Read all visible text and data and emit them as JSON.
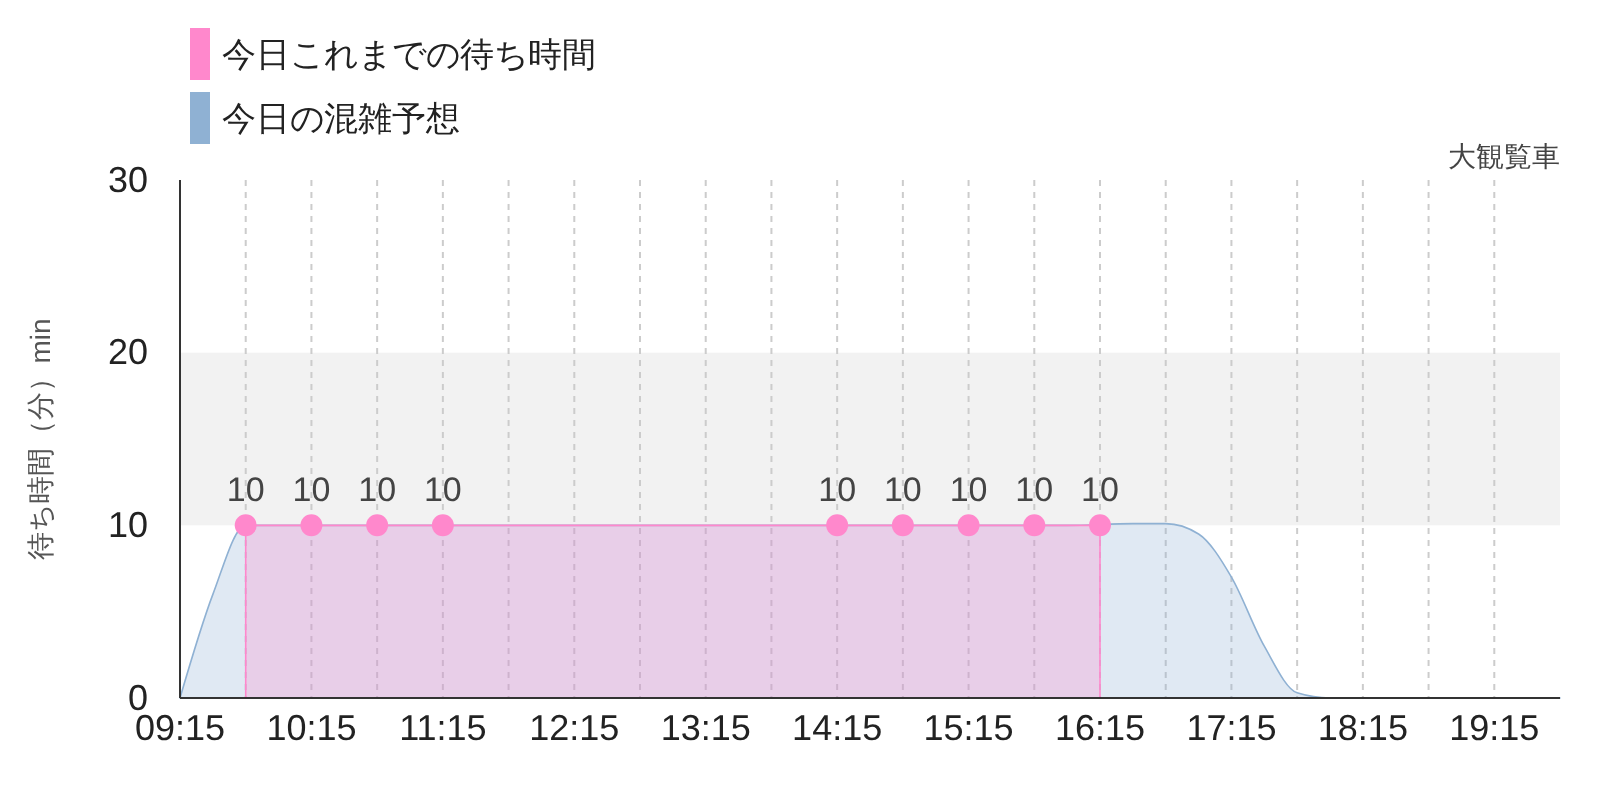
{
  "chart_data": {
    "type": "area",
    "subtitle": "大観覧車",
    "ylabel": "待ち時間（分）min",
    "xlim": [
      9.25,
      19.75
    ],
    "ylim": [
      0,
      30
    ],
    "yticks": [
      0,
      10,
      20,
      30
    ],
    "xticks": [
      {
        "value": 9.25,
        "label": "09:15"
      },
      {
        "value": 9.75,
        "label": null
      },
      {
        "value": 10.25,
        "label": "10:15"
      },
      {
        "value": 10.75,
        "label": null
      },
      {
        "value": 11.25,
        "label": "11:15"
      },
      {
        "value": 11.75,
        "label": null
      },
      {
        "value": 12.25,
        "label": "12:15"
      },
      {
        "value": 12.75,
        "label": null
      },
      {
        "value": 13.25,
        "label": "13:15"
      },
      {
        "value": 13.75,
        "label": null
      },
      {
        "value": 14.25,
        "label": "14:15"
      },
      {
        "value": 14.75,
        "label": null
      },
      {
        "value": 15.25,
        "label": "15:15"
      },
      {
        "value": 15.75,
        "label": null
      },
      {
        "value": 16.25,
        "label": "16:15"
      },
      {
        "value": 16.75,
        "label": null
      },
      {
        "value": 17.25,
        "label": "17:15"
      },
      {
        "value": 17.75,
        "label": null
      },
      {
        "value": 18.25,
        "label": "18:15"
      },
      {
        "value": 18.75,
        "label": null
      },
      {
        "value": 19.25,
        "label": "19:15"
      }
    ],
    "grid": "x",
    "legend": "top left",
    "bands": [
      {
        "axis": "y",
        "from": 10,
        "to": 20,
        "color": "#f2f2f2"
      }
    ],
    "series": [
      {
        "name": "今日の混雑予想",
        "color": "#8fb1d3",
        "marker": "none",
        "x": [
          9.25,
          9.5,
          9.75,
          10,
          10.5,
          16,
          16.5,
          16.75,
          17,
          17.25,
          17.5,
          17.75,
          18,
          19.75
        ],
        "values": [
          0,
          6,
          10,
          10,
          10,
          10,
          10.1,
          10.1,
          9.5,
          7,
          3,
          0.3,
          0,
          0
        ]
      },
      {
        "name": "今日これまでの待ち時間",
        "color": "#ff88cc",
        "marker": "circle",
        "x": [
          9.75,
          10.25,
          10.75,
          11.25,
          14.25,
          14.75,
          15.25,
          15.75,
          16.25
        ],
        "values": [
          10,
          10,
          10,
          10,
          10,
          10,
          10,
          10,
          10
        ],
        "value_labels": [
          "10",
          "10",
          "10",
          "10",
          "10",
          "10",
          "10",
          "10",
          "10"
        ]
      }
    ]
  }
}
